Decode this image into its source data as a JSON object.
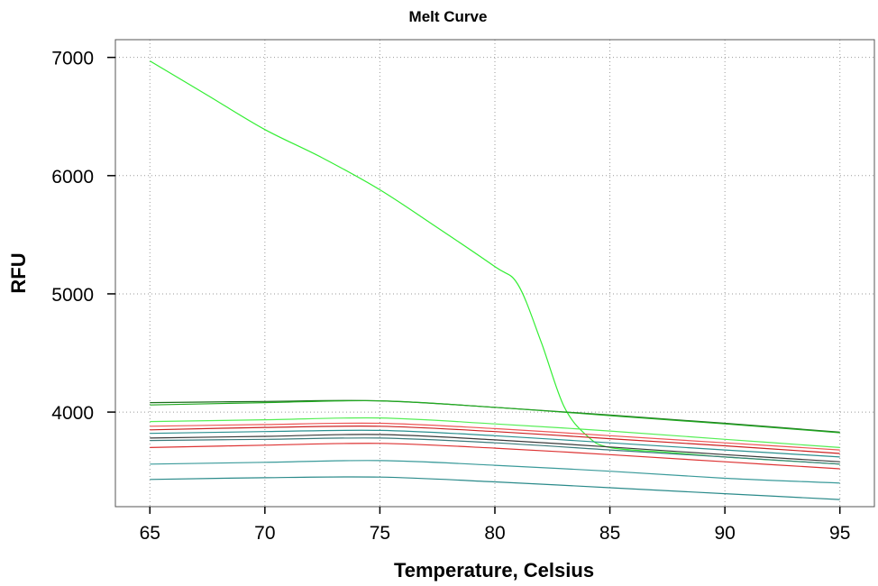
{
  "chart_data": {
    "type": "line",
    "title": "Melt Curve",
    "xlabel": "Temperature, Celsius",
    "ylabel": "RFU",
    "xlim": [
      63.5,
      96.5
    ],
    "ylim": [
      3200,
      7150
    ],
    "xticks": [
      65,
      70,
      75,
      80,
      85,
      90,
      95
    ],
    "yticks": [
      4000,
      5000,
      6000,
      7000
    ],
    "grid": true,
    "series": [
      {
        "color": "#33ee33",
        "x": [
          65,
          67.5,
          70,
          72.5,
          75,
          77.5,
          80,
          81,
          82,
          83,
          84,
          85,
          87.5,
          90,
          92.5,
          95
        ],
        "y": [
          6970,
          6680,
          6390,
          6150,
          5880,
          5560,
          5230,
          5080,
          4600,
          4050,
          3800,
          3700,
          3660,
          3620,
          3590,
          3560
        ]
      },
      {
        "color": "#1a6e1a",
        "x": [
          65,
          70,
          75,
          80,
          85,
          90,
          95
        ],
        "y": [
          4080,
          4090,
          4095,
          4040,
          3975,
          3905,
          3830
        ]
      },
      {
        "color": "#22aa22",
        "x": [
          65,
          70,
          75,
          80,
          85,
          90,
          95
        ],
        "y": [
          4060,
          4080,
          4095,
          4040,
          3970,
          3900,
          3825
        ]
      },
      {
        "color": "#55ee55",
        "x": [
          65,
          70,
          75,
          80,
          85,
          90,
          95
        ],
        "y": [
          3920,
          3935,
          3950,
          3900,
          3840,
          3770,
          3700
        ]
      },
      {
        "color": "#ee5555",
        "x": [
          65,
          70,
          75,
          80,
          85,
          90,
          95
        ],
        "y": [
          3880,
          3895,
          3905,
          3860,
          3800,
          3740,
          3680
        ]
      },
      {
        "color": "#cc2222",
        "x": [
          65,
          70,
          75,
          80,
          85,
          90,
          95
        ],
        "y": [
          3850,
          3870,
          3880,
          3835,
          3775,
          3715,
          3650
        ]
      },
      {
        "color": "#2a8f8f",
        "x": [
          65,
          70,
          75,
          80,
          85,
          90,
          95
        ],
        "y": [
          3820,
          3835,
          3845,
          3800,
          3740,
          3680,
          3620
        ]
      },
      {
        "color": "#3a3a3a",
        "x": [
          65,
          70,
          75,
          80,
          85,
          90,
          95
        ],
        "y": [
          3780,
          3795,
          3810,
          3765,
          3705,
          3640,
          3580
        ]
      },
      {
        "color": "#3a7a7a",
        "x": [
          65,
          70,
          75,
          80,
          85,
          90,
          95
        ],
        "y": [
          3760,
          3770,
          3780,
          3740,
          3680,
          3620,
          3560
        ]
      },
      {
        "color": "#dd3333",
        "x": [
          65,
          70,
          75,
          80,
          85,
          90,
          95
        ],
        "y": [
          3700,
          3720,
          3735,
          3695,
          3640,
          3580,
          3520
        ]
      },
      {
        "color": "#3a9a9a",
        "x": [
          65,
          70,
          75,
          80,
          85,
          90,
          95
        ],
        "y": [
          3560,
          3575,
          3590,
          3550,
          3500,
          3440,
          3400
        ]
      },
      {
        "color": "#2a8a8a",
        "x": [
          65,
          70,
          75,
          80,
          85,
          90,
          95
        ],
        "y": [
          3430,
          3445,
          3450,
          3410,
          3360,
          3310,
          3260
        ]
      }
    ]
  }
}
